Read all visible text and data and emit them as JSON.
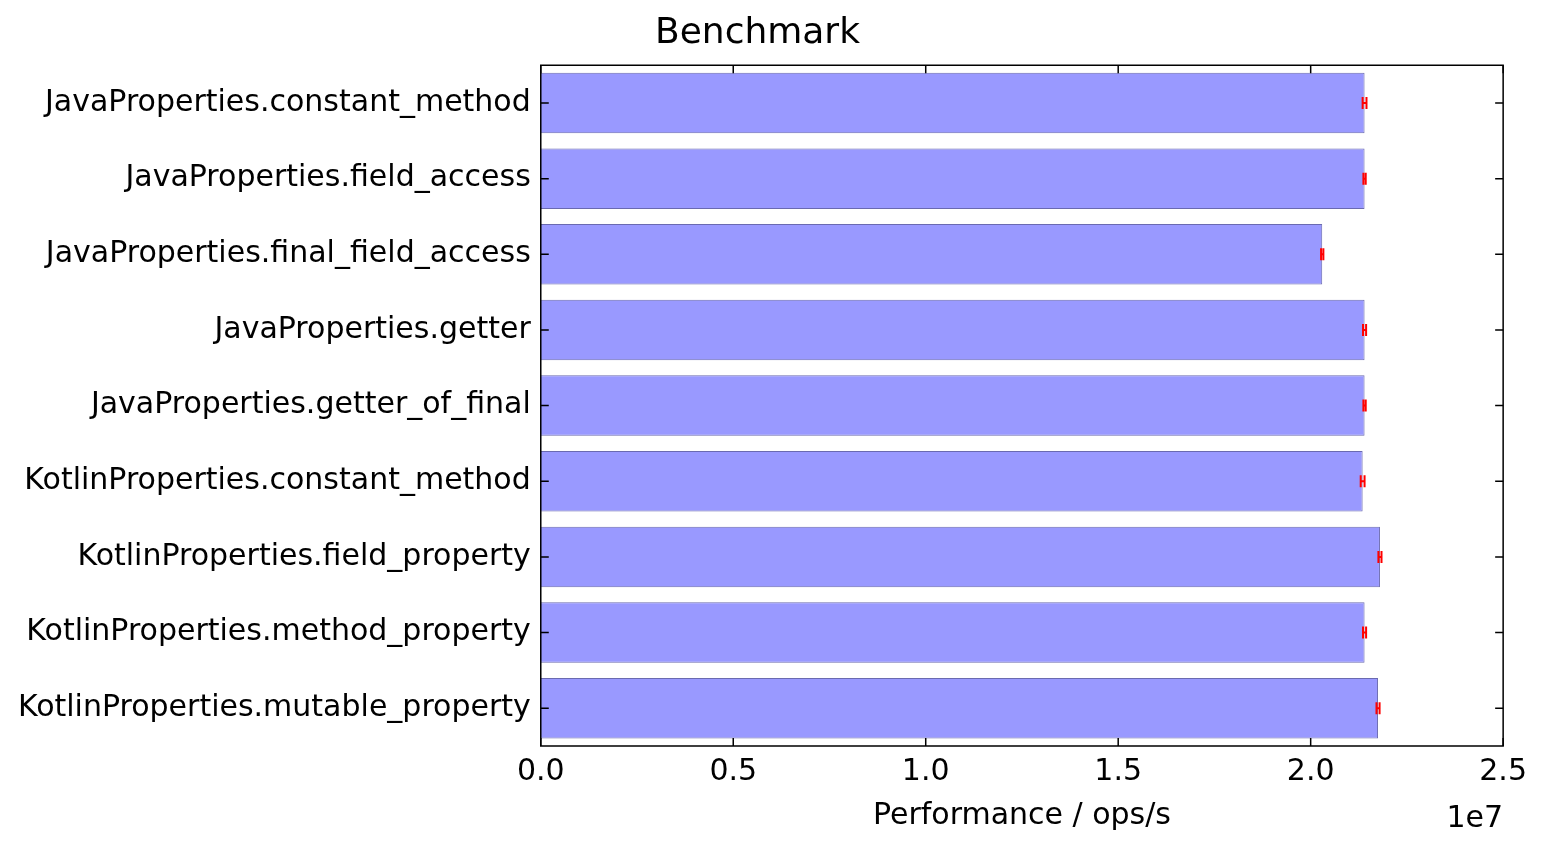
{
  "chart_data": {
    "type": "bar",
    "orientation": "horizontal",
    "title": "Benchmark",
    "xlabel": "Performance / ops/s",
    "categories": [
      "JavaProperties.constant_method",
      "JavaProperties.field_access",
      "JavaProperties.final_field_access",
      "JavaProperties.getter",
      "JavaProperties.getter_of_final",
      "KotlinProperties.constant_method",
      "KotlinProperties.field_property",
      "KotlinProperties.method_property",
      "KotlinProperties.mutable_property"
    ],
    "values": [
      2.14,
      2.14,
      2.03,
      2.14,
      2.14,
      2.135,
      2.18,
      2.14,
      2.175
    ],
    "errors": [
      0.005,
      0.003,
      0.003,
      0.004,
      0.003,
      0.005,
      0.004,
      0.004,
      0.004
    ],
    "color": "#9999ff",
    "xlim": [
      0,
      2.5
    ],
    "xticks": [
      {
        "value": 0,
        "label": "0.0"
      },
      {
        "value": 0.5,
        "label": "0.5"
      },
      {
        "value": 1,
        "label": "1.0"
      },
      {
        "value": 1.5,
        "label": "1.5"
      },
      {
        "value": 2,
        "label": "2.0"
      },
      {
        "value": 2.5,
        "label": "2.5"
      }
    ],
    "annotations": [
      "1e7"
    ],
    "grid": false,
    "legend": false
  }
}
